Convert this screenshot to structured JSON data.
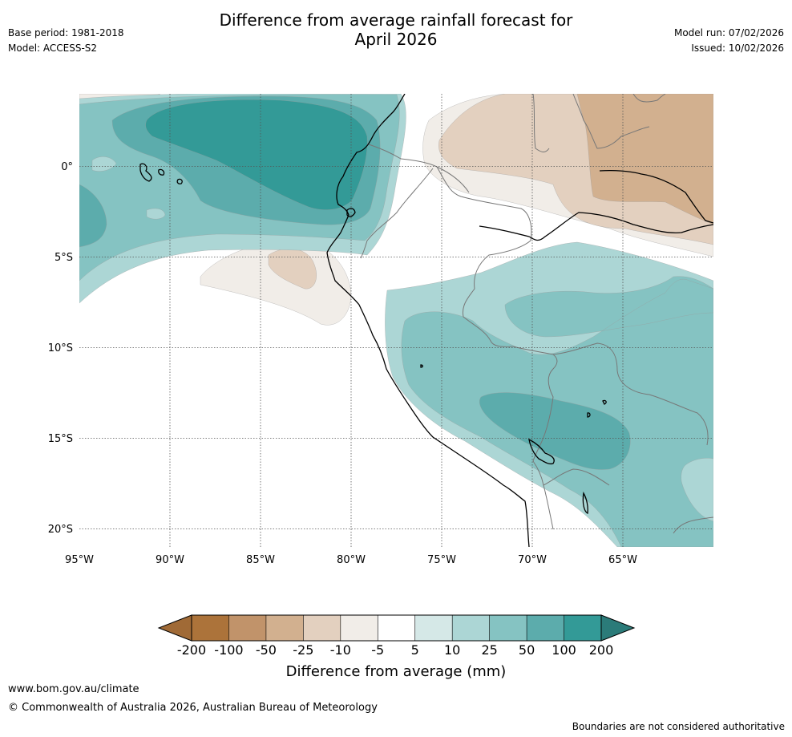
{
  "title": {
    "line1": "Difference from average rainfall forecast for",
    "line2": "April 2026"
  },
  "meta": {
    "base_period": "Base period: 1981-2018",
    "model": "Model: ACCESS-S2",
    "model_run": "Model run: 07/02/2026",
    "issued": "Issued: 10/02/2026"
  },
  "map": {
    "lon_ticks": [
      "95°W",
      "90°W",
      "85°W",
      "80°W",
      "75°W",
      "70°W",
      "65°W"
    ],
    "lat_ticks": [
      "0°",
      "5°S",
      "10°S",
      "15°S",
      "20°S"
    ],
    "lon_range": [
      -95,
      -60
    ],
    "lat_range": [
      -21,
      4
    ]
  },
  "colorbar": {
    "title": "Difference from average (mm)",
    "labels": [
      "-200",
      "-100",
      "-50",
      "-25",
      "-10",
      "-5",
      "5",
      "10",
      "25",
      "50",
      "100",
      "200"
    ],
    "colors": {
      "below_min": "#a06a36",
      "bins": [
        "#ac733a",
        "#c1936a",
        "#d2b08f",
        "#e3d0bf",
        "#f1ede8",
        "#ffffff",
        "#d5e8e7",
        "#acd6d5",
        "#85c3c2",
        "#5cacac",
        "#339a97"
      ],
      "above_max": "#2b7b79"
    }
  },
  "footer": {
    "url": "www.bom.gov.au/climate",
    "copyright": "© Commonwealth of Australia 2026, Australian Bureau of Meteorology",
    "disclaimer": "Boundaries are not considered authoritative"
  }
}
